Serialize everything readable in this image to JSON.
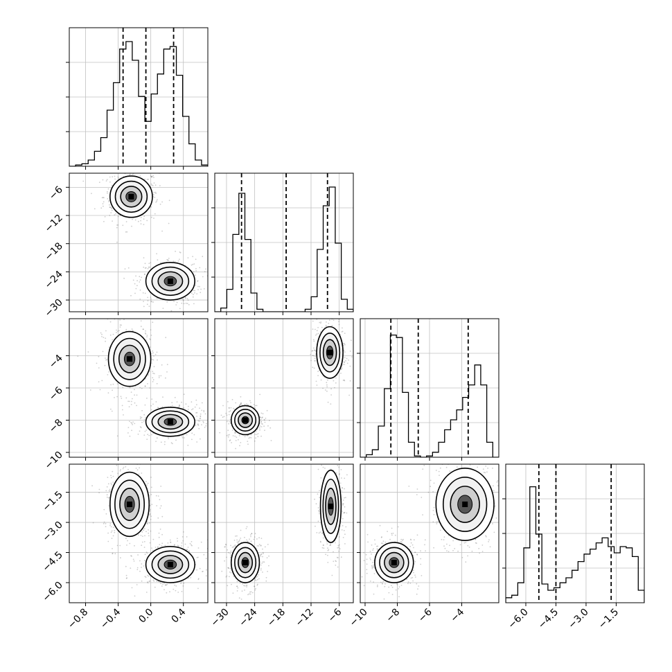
{
  "chart_data": {
    "type": "corner",
    "title": "",
    "parameters": [
      "",
      "",
      "",
      ""
    ],
    "ranges": [
      [
        -1.0,
        0.7
      ],
      [
        -32.5,
        -3.0
      ],
      [
        -10.3,
        -1.7
      ],
      [
        -7.0,
        -0.1
      ]
    ],
    "tick_values": [
      [
        -0.8,
        -0.4,
        0.0,
        0.4
      ],
      [
        -30,
        -24,
        -18,
        -12,
        -6
      ],
      [
        -10,
        -8,
        -6,
        -4
      ],
      [
        -6.0,
        -4.5,
        -3.0,
        -1.5
      ]
    ],
    "tick_labels": [
      [
        "−0.8",
        "−0.4",
        "0.0",
        "0.4"
      ],
      [
        "−30",
        "−24",
        "−18",
        "−12",
        "−6"
      ],
      [
        "−10",
        "−8",
        "−6",
        "−4"
      ],
      [
        "−6.0",
        "−4.5",
        "−3.0",
        "−1.5"
      ]
    ],
    "quantiles": [
      [
        -0.34,
        -0.06,
        0.28
      ],
      [
        -26.8,
        -17.3,
        -8.5
      ],
      [
        -8.4,
        -6.7,
        -3.6
      ],
      [
        -5.35,
        -4.5,
        -1.75
      ]
    ],
    "histograms": [
      {
        "edges_range": [
          -1.0,
          0.7
        ],
        "counts": [
          0,
          0.01,
          0.02,
          0.05,
          0.12,
          0.23,
          0.45,
          0.67,
          0.94,
          1.0,
          0.85,
          0.56,
          0.36,
          0.58,
          0.74,
          0.94,
          0.96,
          0.73,
          0.4,
          0.18,
          0.05,
          0.01
        ]
      },
      {
        "edges_range": [
          -32.5,
          -3.0
        ],
        "counts": [
          0,
          0.03,
          0.18,
          0.62,
          0.95,
          0.58,
          0.15,
          0.02,
          0,
          0,
          0,
          0,
          0,
          0,
          0,
          0.02,
          0.12,
          0.5,
          0.85,
          1.0,
          0.55,
          0.1,
          0.02
        ]
      },
      {
        "edges_range": [
          -10.3,
          -1.7
        ],
        "counts": [
          0,
          0.02,
          0.06,
          0.25,
          0.55,
          0.98,
          0.96,
          0.52,
          0.12,
          0.01,
          0,
          0.01,
          0.04,
          0.12,
          0.22,
          0.3,
          0.38,
          0.48,
          0.58,
          0.74,
          0.58,
          0.12,
          0
        ]
      },
      {
        "edges_range": [
          -7.0,
          -0.1
        ],
        "counts": [
          0.04,
          0.06,
          0.16,
          0.44,
          0.93,
          0.55,
          0.15,
          0.1,
          0.12,
          0.16,
          0.2,
          0.26,
          0.33,
          0.39,
          0.43,
          0.48,
          0.52,
          0.45,
          0.4,
          0.45,
          0.44,
          0.37,
          0.1
        ]
      }
    ],
    "scatter_blobs": {
      "1-0": [
        {
          "cx": -0.24,
          "cy": -8.0,
          "sx": 0.13,
          "sy": 2.2
        },
        {
          "cx": 0.24,
          "cy": -26.0,
          "sx": 0.15,
          "sy": 2.0
        }
      ],
      "2-0": [
        {
          "cx": -0.26,
          "cy": -4.2,
          "sx": 0.13,
          "sy": 0.85
        },
        {
          "cx": 0.24,
          "cy": -8.1,
          "sx": 0.15,
          "sy": 0.45
        }
      ],
      "2-1": [
        {
          "cx": -26.0,
          "cy": -8.0,
          "sx": 1.5,
          "sy": 0.45
        },
        {
          "cx": -8.0,
          "cy": -3.8,
          "sx": 1.4,
          "sy": 0.8
        }
      ],
      "3-0": [
        {
          "cx": -0.26,
          "cy": -2.1,
          "sx": 0.12,
          "sy": 0.8
        },
        {
          "cx": 0.24,
          "cy": -5.1,
          "sx": 0.15,
          "sy": 0.45
        }
      ],
      "3-1": [
        {
          "cx": -26.0,
          "cy": -5.0,
          "sx": 1.5,
          "sy": 0.5
        },
        {
          "cx": -7.8,
          "cy": -2.2,
          "sx": 1.1,
          "sy": 0.9
        }
      ],
      "3-2": [
        {
          "cx": -8.2,
          "cy": -5.0,
          "sx": 0.6,
          "sy": 0.5
        },
        {
          "cx": -3.8,
          "cy": -2.1,
          "sx": 0.9,
          "sy": 0.9
        }
      ]
    },
    "grid": true,
    "colors": {
      "hist_line": "#000000",
      "scatter": "#6e6e6e",
      "axes": "#000000",
      "grid": "#c0c0c0"
    }
  }
}
